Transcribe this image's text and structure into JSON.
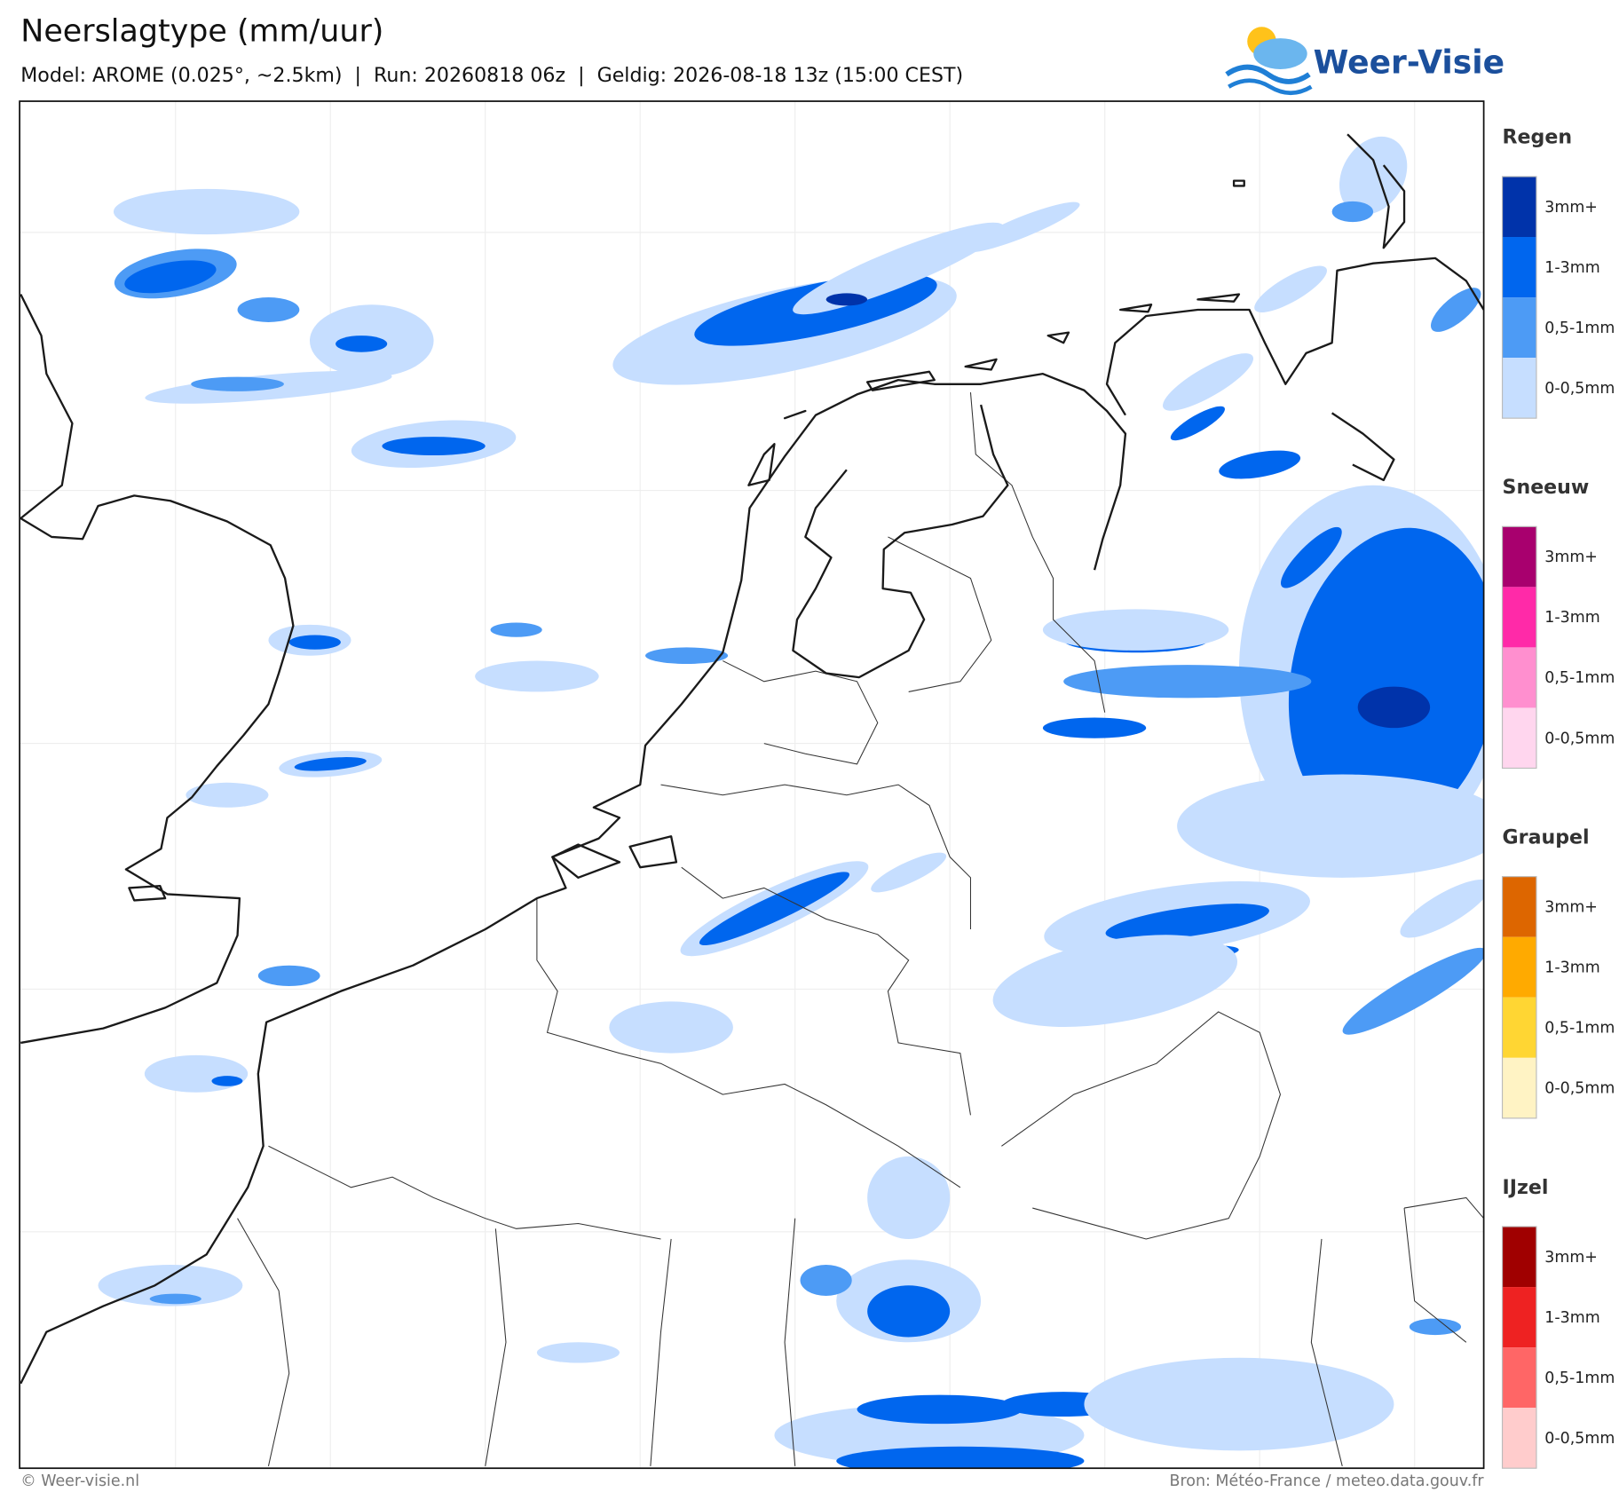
{
  "header": {
    "title": "Neerslagtype (mm/uur)",
    "subtitle": "Model: AROME (0.025°, ~2.5km)  |  Run: 20260818 06z  |  Geldig: 2026-08-18 13z (15:00 CEST)",
    "logo": "Weer-Visie"
  },
  "legend": [
    {
      "name": "Regen",
      "items": [
        {
          "label": "3mm+",
          "color": "#0033aa"
        },
        {
          "label": "1-3mm",
          "color": "#0066ee"
        },
        {
          "label": "0,5-1mm",
          "color": "#4d9bf5"
        },
        {
          "label": "0-0,5mm",
          "color": "#c6deff"
        }
      ]
    },
    {
      "name": "Sneeuw",
      "items": [
        {
          "label": "3mm+",
          "color": "#a8006e"
        },
        {
          "label": "1-3mm",
          "color": "#ff2aa8"
        },
        {
          "label": "0,5-1mm",
          "color": "#ff8fcf"
        },
        {
          "label": "0-0,5mm",
          "color": "#ffd6ee"
        }
      ]
    },
    {
      "name": "Graupel",
      "items": [
        {
          "label": "3mm+",
          "color": "#dd6600"
        },
        {
          "label": "1-3mm",
          "color": "#ffaa00"
        },
        {
          "label": "0,5-1mm",
          "color": "#ffd633"
        },
        {
          "label": "0-0,5mm",
          "color": "#fff3c4"
        }
      ]
    },
    {
      "name": "IJzel",
      "items": [
        {
          "label": "3mm+",
          "color": "#a00000"
        },
        {
          "label": "1-3mm",
          "color": "#ee2222"
        },
        {
          "label": "0,5-1mm",
          "color": "#ff6666"
        },
        {
          "label": "0-0,5mm",
          "color": "#ffcccc"
        }
      ]
    }
  ],
  "footer": {
    "copyright": "© Weer-visie.nl",
    "source": "Bron: Météo-France / meteo.data.gouv.fr"
  }
}
